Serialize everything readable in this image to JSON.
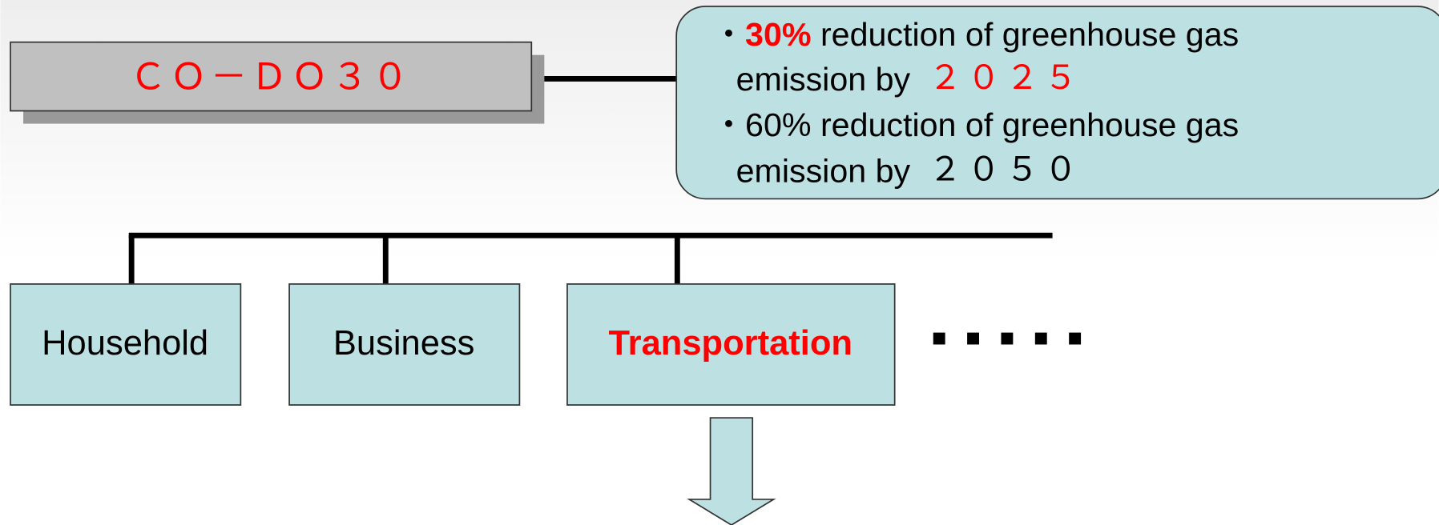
{
  "header": {
    "title": "ＣＯ－ＤＯ３０"
  },
  "goals": [
    {
      "bullet": "・",
      "percent": "30%",
      "line1": "reduction of greenhouse gas",
      "line2": "emission by",
      "year": "２０２５"
    },
    {
      "bullet": "・",
      "percent": "60%",
      "line1": "reduction of greenhouse gas",
      "line2": "emission by",
      "year": "２０５０"
    }
  ],
  "nodes": [
    {
      "label": "Household"
    },
    {
      "label": "Business"
    },
    {
      "label": "Transportation"
    }
  ]
}
